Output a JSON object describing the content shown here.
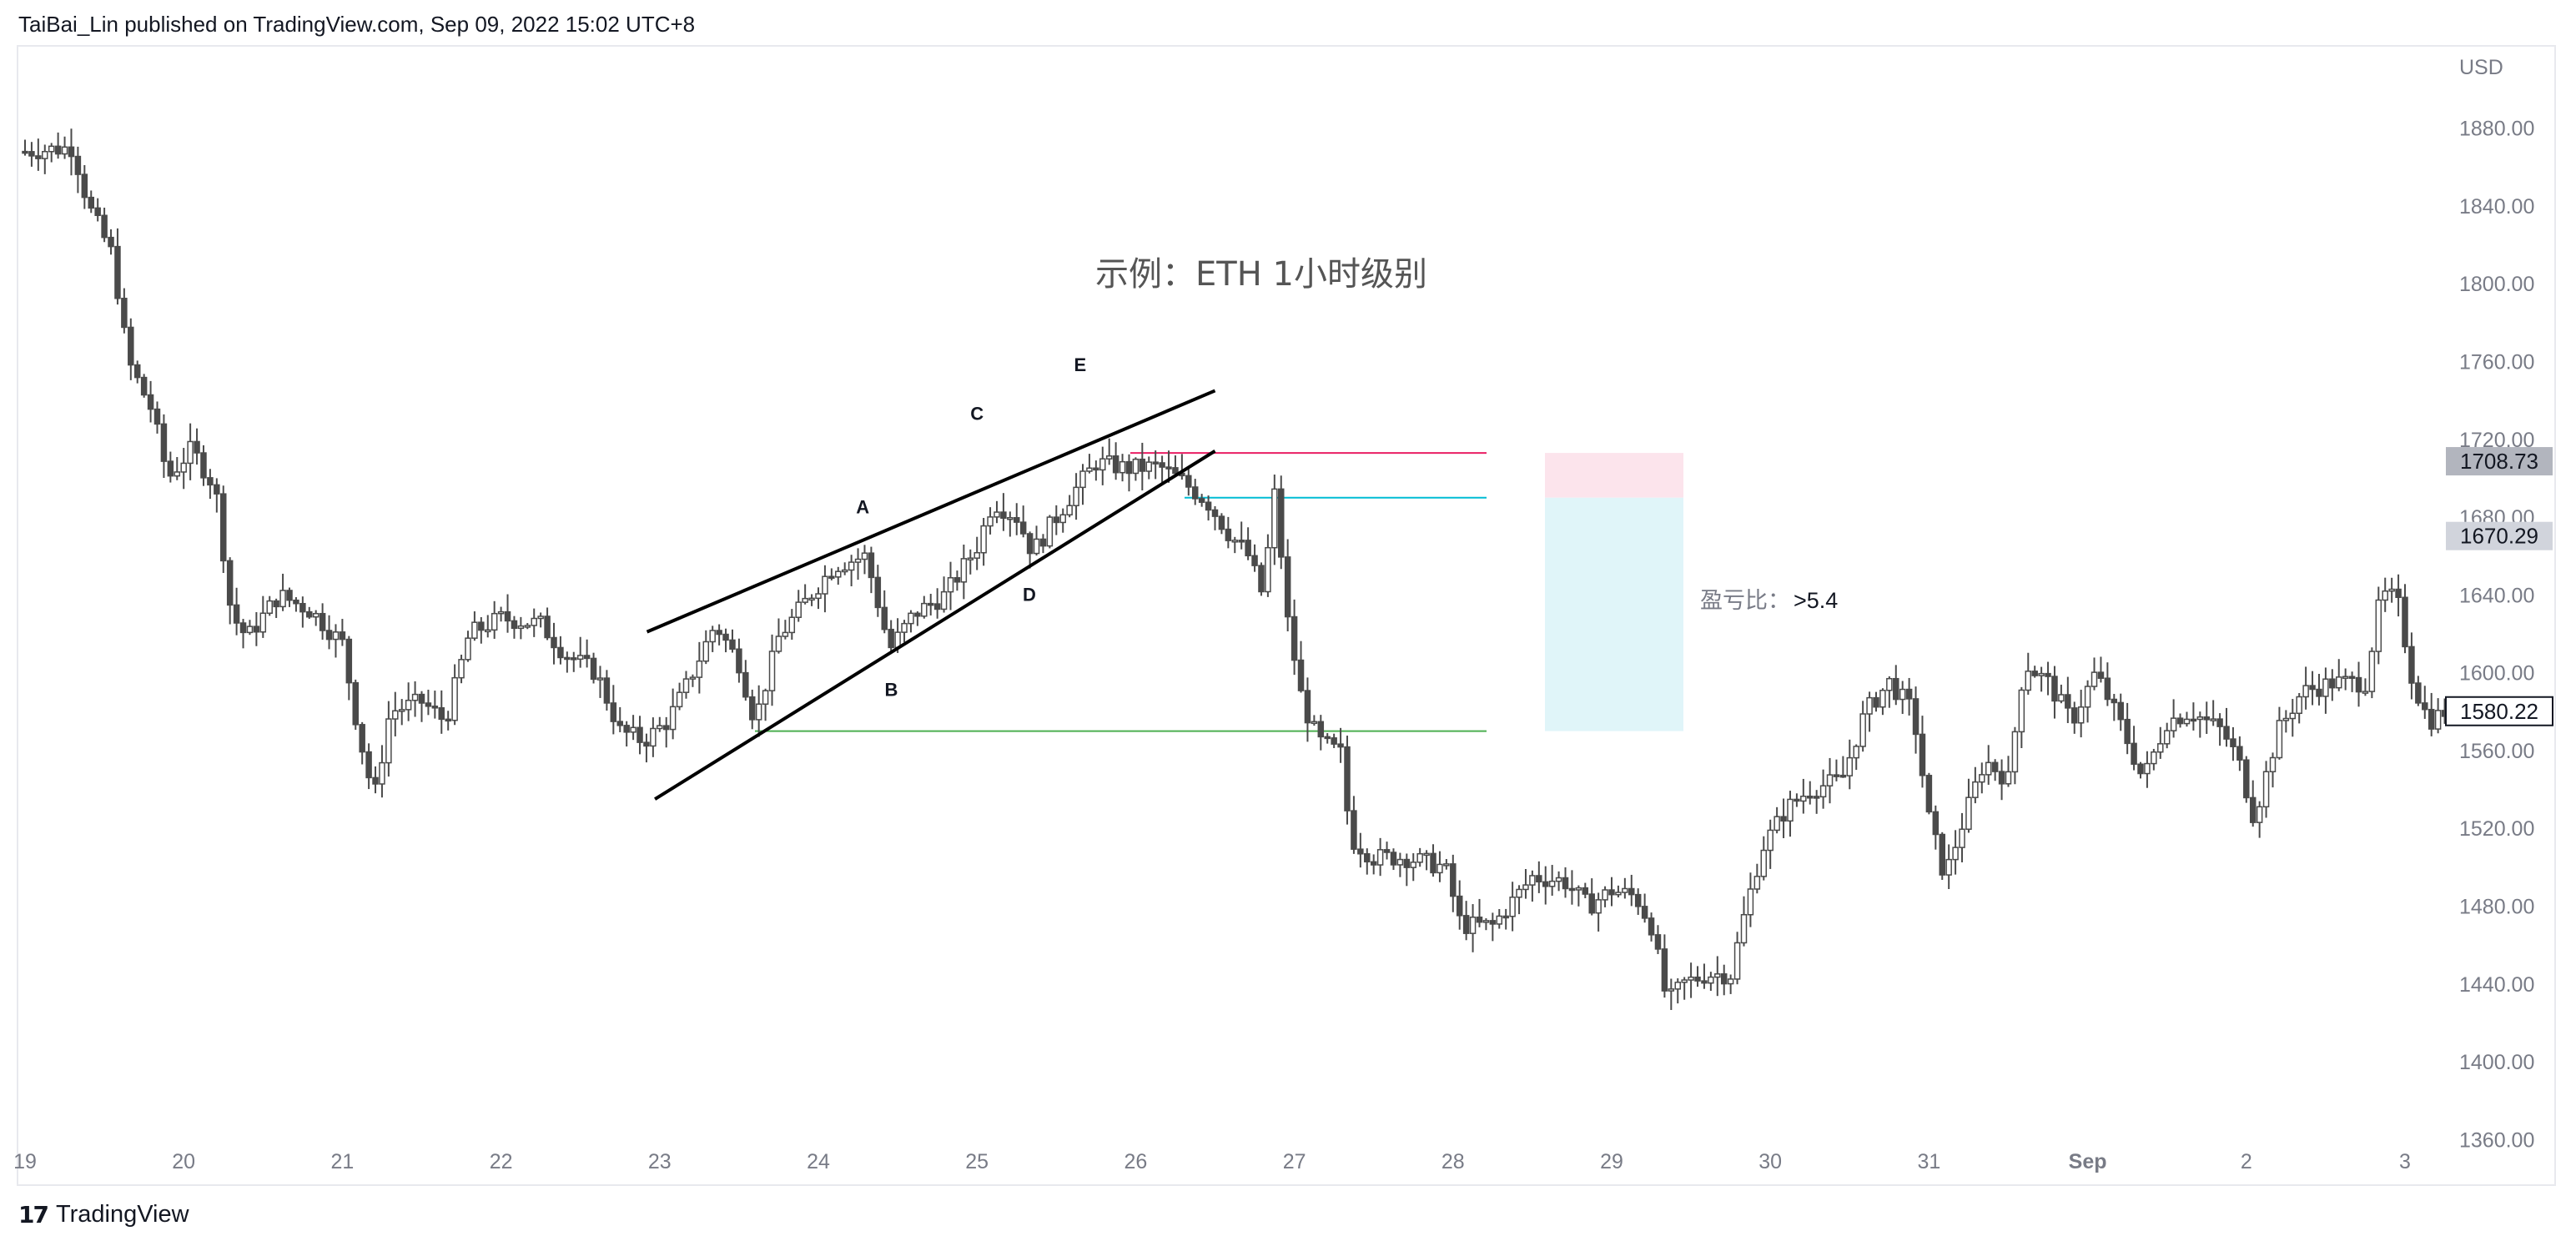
{
  "header": {
    "published_by": "TaiBai_Lin published on TradingView.com, Sep 09, 2022 15:02 UTC+8"
  },
  "footer": {
    "logo": "17",
    "brand": "TradingView"
  },
  "chart_data": {
    "type": "candlestick",
    "title": "示例：ETH 1小时级别",
    "currency": "USD",
    "y_axis_ticks": [
      1360,
      1400,
      1440,
      1480,
      1520,
      1560,
      1600,
      1640,
      1680,
      1720,
      1760,
      1800,
      1840,
      1880
    ],
    "y_axis_tick_labels": [
      "1360.00",
      "1400.00",
      "1440.00",
      "1480.00",
      "1520.00",
      "1560.00",
      "1600.00",
      "1640.00",
      "1680.00",
      "1720.00",
      "1760.00",
      "1800.00",
      "1840.00",
      "1880.00"
    ],
    "ylim": [
      1355,
      1915
    ],
    "x_axis_labels": [
      "19",
      "20",
      "21",
      "22",
      "23",
      "24",
      "25",
      "26",
      "27",
      "28",
      "29",
      "30",
      "31",
      "Sep",
      "2",
      "3"
    ],
    "price_labels": [
      {
        "value": 1708.73,
        "text": "1708.73",
        "style": "dark"
      },
      {
        "value": 1670.29,
        "text": "1670.29",
        "style": "light"
      },
      {
        "value": 1580.22,
        "text": "1580.22",
        "style": "boxed"
      }
    ],
    "pattern_labels": [
      "A",
      "B",
      "C",
      "D",
      "E"
    ],
    "ratio_annotation": {
      "label": "盈亏比：",
      "value": ">5.4"
    },
    "levels": [
      {
        "name": "stop",
        "price": 1713,
        "color": "#e91e63"
      },
      {
        "name": "entry",
        "price": 1690,
        "color": "#00bcd4"
      },
      {
        "name": "target",
        "price": 1570,
        "color": "#4caf50"
      }
    ],
    "risk_zone": {
      "from": 1690,
      "to": 1713,
      "color": "#fce4ec"
    },
    "reward_zone": {
      "from": 1570,
      "to": 1690,
      "color": "#e0f5f9"
    },
    "anchor_points": [
      {
        "day": 19.0,
        "price": 1868
      },
      {
        "day": 19.3,
        "price": 1870
      },
      {
        "day": 19.4,
        "price": 1840
      },
      {
        "day": 19.55,
        "price": 1815
      },
      {
        "day": 19.65,
        "price": 1760
      },
      {
        "day": 19.8,
        "price": 1735
      },
      {
        "day": 19.9,
        "price": 1700
      },
      {
        "day": 20.05,
        "price": 1715
      },
      {
        "day": 20.2,
        "price": 1695
      },
      {
        "day": 20.3,
        "price": 1630
      },
      {
        "day": 20.4,
        "price": 1618
      },
      {
        "day": 20.6,
        "price": 1640
      },
      {
        "day": 20.8,
        "price": 1632
      },
      {
        "day": 21.0,
        "price": 1615
      },
      {
        "day": 21.1,
        "price": 1570
      },
      {
        "day": 21.2,
        "price": 1535
      },
      {
        "day": 21.3,
        "price": 1580
      },
      {
        "day": 21.5,
        "price": 1585
      },
      {
        "day": 21.65,
        "price": 1575
      },
      {
        "day": 21.8,
        "price": 1620
      },
      {
        "day": 22.0,
        "price": 1628
      },
      {
        "day": 22.25,
        "price": 1625
      },
      {
        "day": 22.4,
        "price": 1610
      },
      {
        "day": 22.6,
        "price": 1600
      },
      {
        "day": 22.75,
        "price": 1570
      },
      {
        "day": 22.9,
        "price": 1565
      },
      {
        "day": 23.05,
        "price": 1575
      },
      {
        "day": 23.15,
        "price": 1590
      },
      {
        "day": 23.35,
        "price": 1625
      },
      {
        "day": 23.5,
        "price": 1605
      },
      {
        "day": 23.6,
        "price": 1575
      },
      {
        "day": 23.75,
        "price": 1618
      },
      {
        "day": 23.95,
        "price": 1640
      },
      {
        "day": 24.1,
        "price": 1655
      },
      {
        "day": 24.3,
        "price": 1660
      },
      {
        "day": 24.45,
        "price": 1612
      },
      {
        "day": 24.6,
        "price": 1630
      },
      {
        "day": 24.8,
        "price": 1640
      },
      {
        "day": 25.0,
        "price": 1665
      },
      {
        "day": 25.1,
        "price": 1688
      },
      {
        "day": 25.25,
        "price": 1680
      },
      {
        "day": 25.35,
        "price": 1662
      },
      {
        "day": 25.5,
        "price": 1680
      },
      {
        "day": 25.6,
        "price": 1692
      },
      {
        "day": 25.75,
        "price": 1708
      },
      {
        "day": 25.95,
        "price": 1705
      },
      {
        "day": 26.15,
        "price": 1706
      },
      {
        "day": 26.3,
        "price": 1698
      },
      {
        "day": 26.45,
        "price": 1688
      },
      {
        "day": 26.6,
        "price": 1670
      },
      {
        "day": 26.7,
        "price": 1662
      },
      {
        "day": 26.8,
        "price": 1640
      },
      {
        "day": 26.88,
        "price": 1695
      },
      {
        "day": 26.95,
        "price": 1630
      },
      {
        "day": 27.05,
        "price": 1585
      },
      {
        "day": 27.15,
        "price": 1565
      },
      {
        "day": 27.3,
        "price": 1558
      },
      {
        "day": 27.35,
        "price": 1515
      },
      {
        "day": 27.5,
        "price": 1505
      },
      {
        "day": 27.7,
        "price": 1505
      },
      {
        "day": 27.95,
        "price": 1500
      },
      {
        "day": 28.05,
        "price": 1470
      },
      {
        "day": 28.25,
        "price": 1470
      },
      {
        "day": 28.35,
        "price": 1480
      },
      {
        "day": 28.5,
        "price": 1495
      },
      {
        "day": 28.7,
        "price": 1493
      },
      {
        "day": 28.85,
        "price": 1480
      },
      {
        "day": 29.0,
        "price": 1488
      },
      {
        "day": 29.15,
        "price": 1485
      },
      {
        "day": 29.25,
        "price": 1470
      },
      {
        "day": 29.35,
        "price": 1430
      },
      {
        "day": 29.45,
        "price": 1440
      },
      {
        "day": 29.6,
        "price": 1445
      },
      {
        "day": 29.75,
        "price": 1445
      },
      {
        "day": 29.85,
        "price": 1480
      },
      {
        "day": 29.95,
        "price": 1510
      },
      {
        "day": 30.1,
        "price": 1530
      },
      {
        "day": 30.25,
        "price": 1540
      },
      {
        "day": 30.45,
        "price": 1545
      },
      {
        "day": 30.6,
        "price": 1580
      },
      {
        "day": 30.75,
        "price": 1595
      },
      {
        "day": 30.9,
        "price": 1580
      },
      {
        "day": 31.0,
        "price": 1525
      },
      {
        "day": 31.1,
        "price": 1495
      },
      {
        "day": 31.2,
        "price": 1520
      },
      {
        "day": 31.35,
        "price": 1555
      },
      {
        "day": 31.5,
        "price": 1545
      },
      {
        "day": 31.6,
        "price": 1605
      },
      {
        "day": 31.75,
        "price": 1595
      },
      {
        "day": 31.9,
        "price": 1575
      },
      {
        "day": 32.05,
        "price": 1600
      },
      {
        "day": 32.2,
        "price": 1575
      },
      {
        "day": 32.35,
        "price": 1545
      },
      {
        "day": 32.5,
        "price": 1575
      },
      {
        "day": 32.65,
        "price": 1580
      },
      {
        "day": 32.85,
        "price": 1570
      },
      {
        "day": 32.95,
        "price": 1555
      },
      {
        "day": 33.05,
        "price": 1525
      },
      {
        "day": 33.2,
        "price": 1570
      },
      {
        "day": 33.35,
        "price": 1590
      },
      {
        "day": 33.55,
        "price": 1595
      },
      {
        "day": 33.75,
        "price": 1595
      },
      {
        "day": 33.85,
        "price": 1640
      },
      {
        "day": 33.95,
        "price": 1638
      },
      {
        "day": 34.05,
        "price": 1595
      },
      {
        "day": 34.15,
        "price": 1575
      },
      {
        "day": 34.25,
        "price": 1580
      }
    ],
    "trendlines": [
      {
        "name": "wedge-upper",
        "from": {
          "day": 22.92,
          "price": 1621
        },
        "to": {
          "day": 26.5,
          "price": 1745
        }
      },
      {
        "name": "wedge-lower",
        "from": {
          "day": 22.97,
          "price": 1535
        },
        "to": {
          "day": 26.5,
          "price": 1714
        }
      }
    ]
  }
}
